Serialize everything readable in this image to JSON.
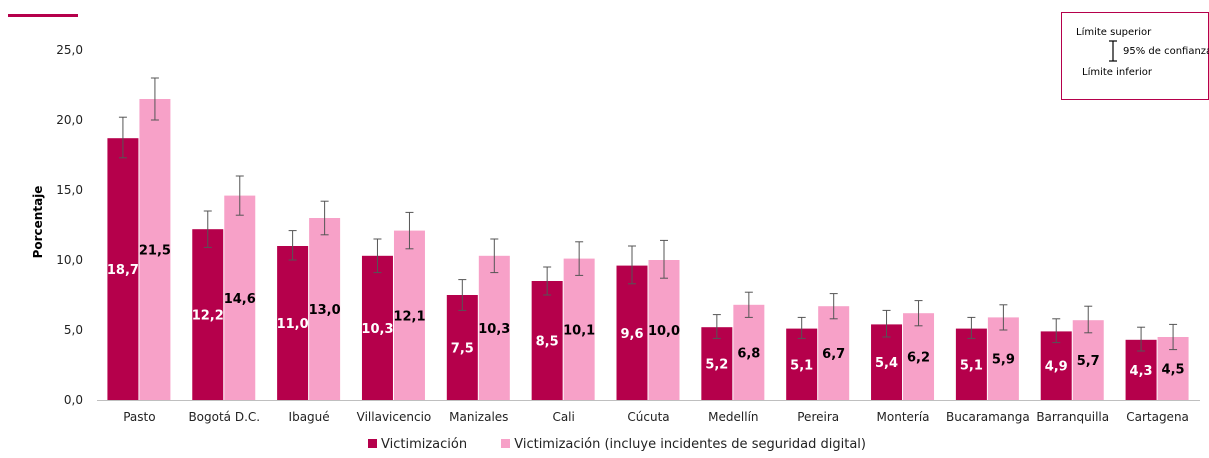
{
  "chart_data": {
    "type": "bar",
    "title": "",
    "xlabel": "",
    "ylabel": "Porcentaje",
    "ylim": [
      0,
      25
    ],
    "yticks": [
      "0,0",
      "5,0",
      "10,0",
      "15,0",
      "20,0",
      "25,0"
    ],
    "categories": [
      "Pasto",
      "Bogotá D.C.",
      "Ibagué",
      "Villavicencio",
      "Manizales",
      "Cali",
      "Cúcuta",
      "Medellín",
      "Pereira",
      "Montería",
      "Bucaramanga",
      "Barranquilla",
      "Cartagena"
    ],
    "series": [
      {
        "name": "Victimización",
        "color": "#b5004b",
        "values": [
          18.7,
          12.2,
          11.0,
          10.3,
          7.5,
          8.5,
          9.6,
          5.2,
          5.1,
          5.4,
          5.1,
          4.9,
          4.3
        ],
        "labels": [
          "18,7",
          "12,2",
          "11,0",
          "10,3",
          "7,5",
          "8,5",
          "9,6",
          "5,2",
          "5,1",
          "5,4",
          "5,1",
          "4,9",
          "4,3"
        ],
        "ci_upper": [
          20.2,
          13.5,
          12.1,
          11.5,
          8.6,
          9.5,
          11.0,
          6.1,
          5.9,
          6.4,
          5.9,
          5.8,
          5.2
        ],
        "ci_lower": [
          17.3,
          10.9,
          10.0,
          9.1,
          6.4,
          7.5,
          8.3,
          4.4,
          4.4,
          4.5,
          4.4,
          4.1,
          3.5
        ]
      },
      {
        "name": "Victimización (incluye incidentes de seguridad digital)",
        "color": "#f7a1c8",
        "values": [
          21.5,
          14.6,
          13.0,
          12.1,
          10.3,
          10.1,
          10.0,
          6.8,
          6.7,
          6.2,
          5.9,
          5.7,
          4.5
        ],
        "labels": [
          "21,5",
          "14,6",
          "13,0",
          "12,1",
          "10,3",
          "10,1",
          "10,0",
          "6,8",
          "6,7",
          "6,2",
          "5,9",
          "5,7",
          "4,5"
        ],
        "ci_upper": [
          23.0,
          16.0,
          14.2,
          13.4,
          11.5,
          11.3,
          11.4,
          7.7,
          7.6,
          7.1,
          6.8,
          6.7,
          5.4
        ],
        "ci_lower": [
          20.0,
          13.2,
          11.8,
          10.8,
          9.1,
          8.9,
          8.7,
          5.9,
          5.8,
          5.3,
          5.0,
          4.8,
          3.6
        ]
      }
    ],
    "ci_legend": {
      "upper": "Límite superior",
      "interval": "95% de confianza",
      "lower": "Límite inferior"
    },
    "legend_position": "bottom"
  }
}
